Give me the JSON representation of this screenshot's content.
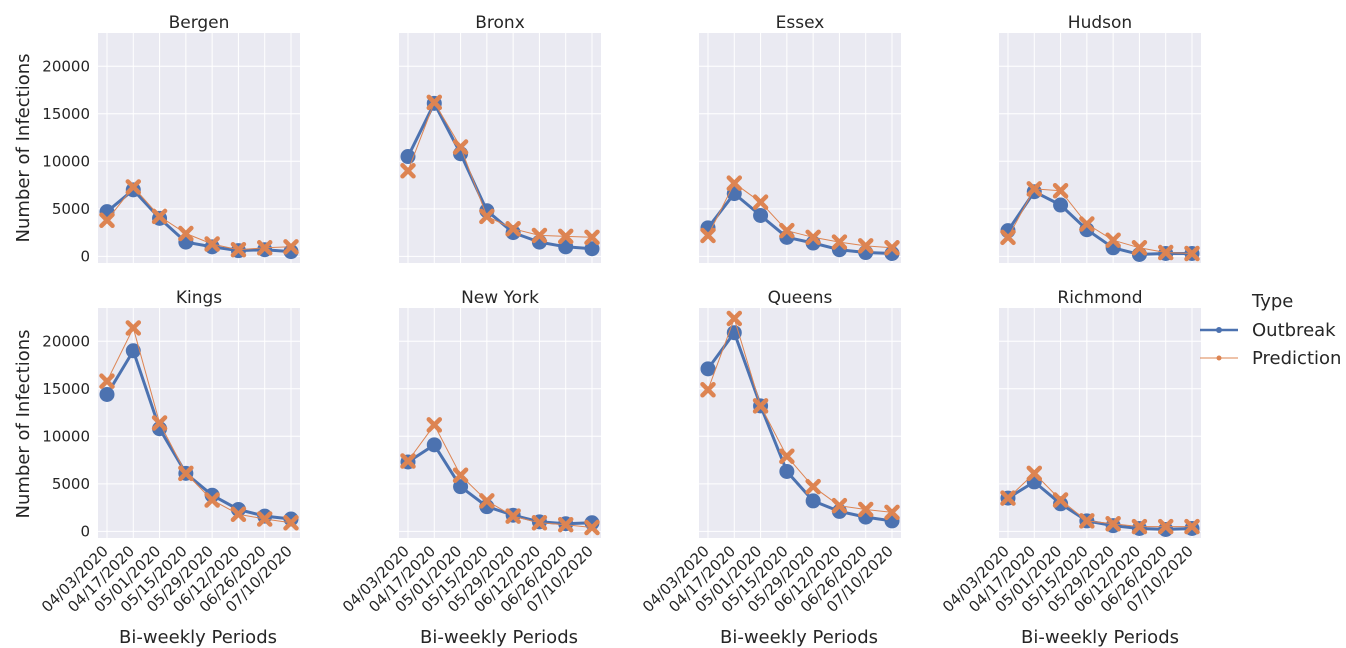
{
  "colors": {
    "panel_bg": "#eaeaf2",
    "grid": "#ffffff",
    "outbreak": "#4c72b0",
    "prediction": "#dd8452",
    "text": "#262626"
  },
  "legend": {
    "title": "Type",
    "items": [
      {
        "label": "Outbreak",
        "color": "#4c72b0",
        "marker": "circle"
      },
      {
        "label": "Prediction",
        "color": "#dd8452",
        "marker": "x"
      }
    ]
  },
  "chart_data": {
    "type": "line",
    "layout": "faceted 2x4, shared axes",
    "xlabel": "Bi-weekly Periods",
    "ylabel": "Number of Infections",
    "categories": [
      "04/03/2020",
      "04/17/2020",
      "05/01/2020",
      "05/15/2020",
      "05/29/2020",
      "06/12/2020",
      "06/26/2020",
      "07/10/2020"
    ],
    "ylim": [
      -700,
      23500
    ],
    "yticks": [
      0,
      5000,
      10000,
      15000,
      20000
    ],
    "grid": true,
    "legend_position": "right",
    "panels": [
      {
        "title": "Bergen",
        "series": [
          {
            "name": "Outbreak",
            "values": [
              4700,
              7000,
              4000,
              1500,
              1000,
              600,
              700,
              500
            ]
          },
          {
            "name": "Prediction",
            "values": [
              3800,
              7300,
              4200,
              2400,
              1300,
              700,
              900,
              1000
            ]
          }
        ]
      },
      {
        "title": "Bronx",
        "series": [
          {
            "name": "Outbreak",
            "values": [
              10500,
              16100,
              10800,
              4800,
              2500,
              1500,
              1000,
              800
            ]
          },
          {
            "name": "Prediction",
            "values": [
              9000,
              16200,
              11500,
              4200,
              2900,
              2200,
              2100,
              2000
            ]
          }
        ]
      },
      {
        "title": "Essex",
        "series": [
          {
            "name": "Outbreak",
            "values": [
              3000,
              6600,
              4300,
              2000,
              1400,
              700,
              400,
              300
            ]
          },
          {
            "name": "Prediction",
            "values": [
              2200,
              7700,
              5700,
              2700,
              2000,
              1500,
              1100,
              900
            ]
          }
        ]
      },
      {
        "title": "Hudson",
        "series": [
          {
            "name": "Outbreak",
            "values": [
              2700,
              6800,
              5400,
              2800,
              900,
              200,
              300,
              300
            ]
          },
          {
            "name": "Prediction",
            "values": [
              2000,
              7100,
              6900,
              3400,
              1700,
              900,
              400,
              300
            ]
          }
        ]
      },
      {
        "title": "Kings",
        "series": [
          {
            "name": "Outbreak",
            "values": [
              14400,
              19000,
              10800,
              6100,
              3800,
              2300,
              1600,
              1300
            ]
          },
          {
            "name": "Prediction",
            "values": [
              15800,
              21400,
              11400,
              6100,
              3300,
              1800,
              1300,
              900
            ]
          }
        ]
      },
      {
        "title": "New York",
        "series": [
          {
            "name": "Outbreak",
            "values": [
              7300,
              9100,
              4700,
              2600,
              1700,
              1000,
              800,
              900
            ]
          },
          {
            "name": "Prediction",
            "values": [
              7400,
              11200,
              5900,
              3200,
              1600,
              900,
              700,
              400
            ]
          }
        ]
      },
      {
        "title": "Queens",
        "series": [
          {
            "name": "Outbreak",
            "values": [
              17100,
              20900,
              13200,
              6300,
              3200,
              2100,
              1500,
              1100
            ]
          },
          {
            "name": "Prediction",
            "values": [
              14900,
              22400,
              13200,
              7900,
              4700,
              2700,
              2300,
              2000
            ]
          }
        ]
      },
      {
        "title": "Richmond",
        "series": [
          {
            "name": "Outbreak",
            "values": [
              3500,
              5200,
              2900,
              1100,
              600,
              300,
              200,
              300
            ]
          },
          {
            "name": "Prediction",
            "values": [
              3500,
              6100,
              3300,
              1100,
              800,
              500,
              500,
              500
            ]
          }
        ]
      }
    ]
  }
}
